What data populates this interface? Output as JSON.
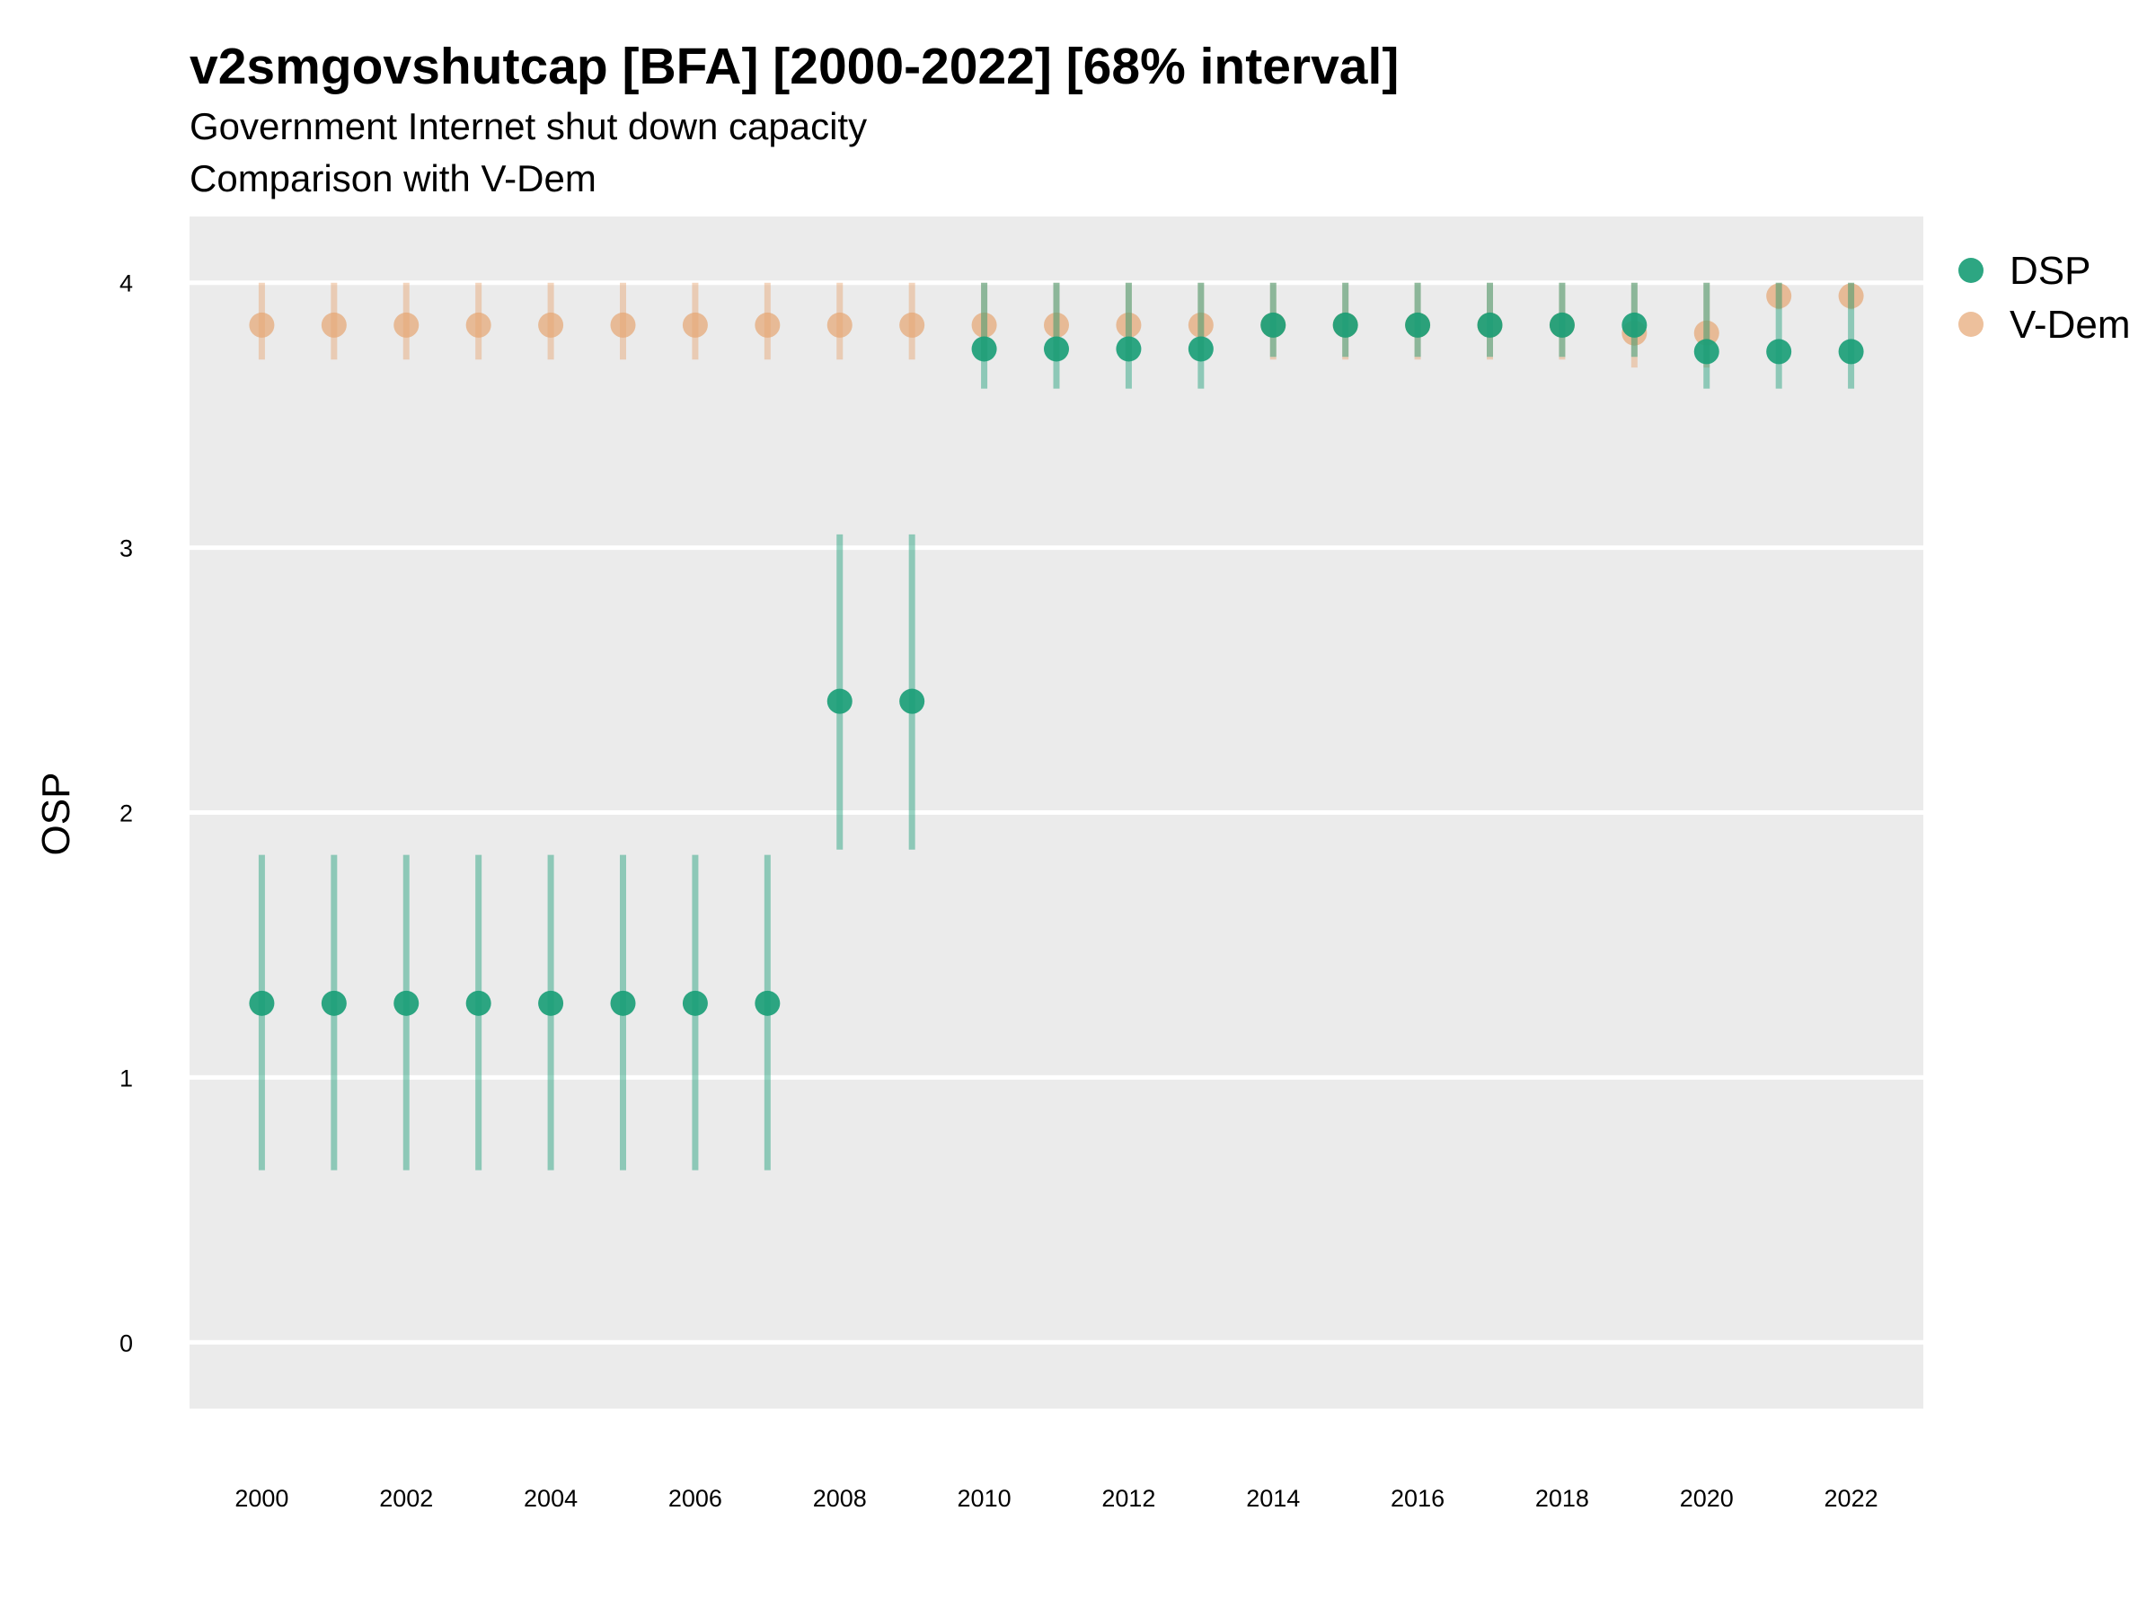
{
  "chart_data": {
    "type": "scatter",
    "title": "v2smgovshutcap [BFA] [2000-2022] [68% interval]",
    "subtitle_lines": [
      "Government Internet shut down capacity",
      "Comparison with V-Dem"
    ],
    "xlabel": "",
    "ylabel": "OSP",
    "x": [
      2000,
      2001,
      2002,
      2003,
      2004,
      2005,
      2006,
      2007,
      2008,
      2009,
      2010,
      2011,
      2012,
      2013,
      2014,
      2015,
      2016,
      2017,
      2018,
      2019,
      2020,
      2021,
      2022
    ],
    "xticks": [
      "2000",
      "2002",
      "2004",
      "2006",
      "2008",
      "2010",
      "2012",
      "2014",
      "2016",
      "2018",
      "2020",
      "2022"
    ],
    "yticks": [
      "0",
      "1",
      "2",
      "3",
      "4"
    ],
    "xlim": [
      1999,
      2023
    ],
    "ylim": [
      -0.25,
      4.25
    ],
    "grid": "horizontal",
    "legend_position": "right",
    "series": [
      {
        "name": "V-Dem",
        "color": "#E6A572",
        "values": [
          3.84,
          3.84,
          3.84,
          3.84,
          3.84,
          3.84,
          3.84,
          3.84,
          3.84,
          3.84,
          3.84,
          3.84,
          3.84,
          3.84,
          3.84,
          3.84,
          3.84,
          3.84,
          3.84,
          3.81,
          3.81,
          3.95,
          3.95
        ],
        "lower": [
          3.71,
          3.71,
          3.71,
          3.71,
          3.71,
          3.71,
          3.71,
          3.71,
          3.71,
          3.71,
          3.71,
          3.71,
          3.71,
          3.71,
          3.71,
          3.71,
          3.71,
          3.71,
          3.71,
          3.68,
          3.68,
          3.9,
          3.9
        ],
        "upper": [
          4.0,
          4.0,
          4.0,
          4.0,
          4.0,
          4.0,
          4.0,
          4.0,
          4.0,
          4.0,
          4.0,
          4.0,
          4.0,
          4.0,
          4.0,
          4.0,
          4.0,
          4.0,
          4.0,
          4.0,
          4.0,
          4.0,
          4.0
        ]
      },
      {
        "name": "DSP",
        "color": "#1B9E77",
        "values": [
          1.28,
          1.28,
          1.28,
          1.28,
          1.28,
          1.28,
          1.28,
          1.28,
          2.42,
          2.42,
          3.75,
          3.75,
          3.75,
          3.75,
          3.84,
          3.84,
          3.84,
          3.84,
          3.84,
          3.84,
          3.74,
          3.74,
          3.74
        ],
        "lower": [
          0.65,
          0.65,
          0.65,
          0.65,
          0.65,
          0.65,
          0.65,
          0.65,
          1.86,
          1.86,
          3.6,
          3.6,
          3.6,
          3.6,
          3.72,
          3.72,
          3.72,
          3.72,
          3.72,
          3.72,
          3.6,
          3.6,
          3.6
        ],
        "upper": [
          1.84,
          1.84,
          1.84,
          1.84,
          1.84,
          1.84,
          1.84,
          1.84,
          3.05,
          3.05,
          4.0,
          4.0,
          4.0,
          4.0,
          4.0,
          4.0,
          4.0,
          4.0,
          4.0,
          4.0,
          4.0,
          4.0,
          4.0
        ]
      }
    ]
  }
}
